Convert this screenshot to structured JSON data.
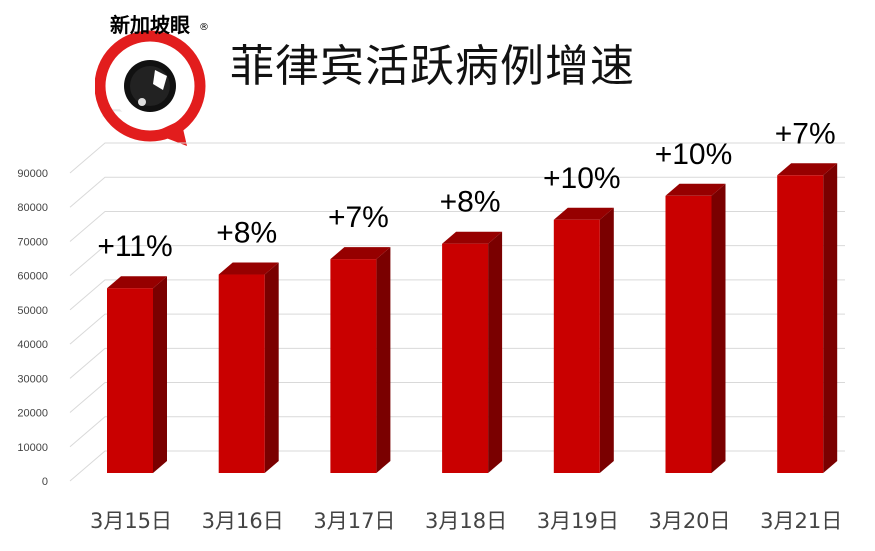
{
  "title": "菲律宾活跃病例增速",
  "logo": {
    "text": "新加坡眼",
    "mark": "®"
  },
  "colors": {
    "bar_front": "#c90000",
    "bar_side": "#7a0000",
    "bar_top": "#960000",
    "logo_red": "#e21d1d"
  },
  "chart_data": {
    "type": "bar",
    "categories": [
      "3月15日",
      "3月16日",
      "3月17日",
      "3月18日",
      "3月19日",
      "3月20日",
      "3月21日"
    ],
    "values": [
      54000,
      58000,
      62500,
      67000,
      74000,
      81000,
      87000
    ],
    "data_labels": [
      "+11%",
      "+8%",
      "+7%",
      "+8%",
      "+10%",
      "+10%",
      "+7%"
    ],
    "yticks": [
      0,
      10000,
      20000,
      30000,
      40000,
      50000,
      60000,
      70000,
      80000,
      90000
    ],
    "ylim": [
      0,
      90000
    ],
    "grid": true,
    "style": "3d"
  }
}
